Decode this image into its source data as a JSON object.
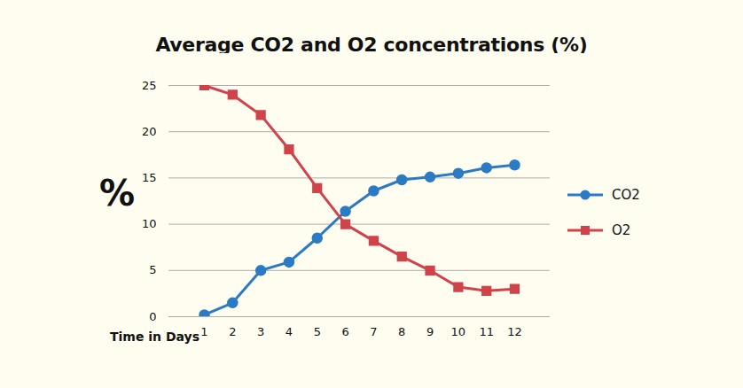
{
  "chart_data": {
    "type": "line",
    "title": "Average CO2 and O2 concentrations (%)",
    "xlabel": "Time in Days",
    "ylabel": "%",
    "x": [
      1,
      2,
      3,
      4,
      5,
      6,
      7,
      8,
      9,
      10,
      11,
      12
    ],
    "series": [
      {
        "name": "CO2",
        "color": "#2b7bc4",
        "marker": "circle",
        "line_style": "solid",
        "values": [
          0.2,
          1.5,
          5,
          5.9,
          8.5,
          11.4,
          13.6,
          14.8,
          15.1,
          15.5,
          16.1,
          16.4
        ]
      },
      {
        "name": "O2",
        "color": "#d0434a",
        "marker": "square",
        "line_style": "solid",
        "values": [
          25,
          24,
          21.8,
          18.1,
          13.9,
          10,
          8.2,
          6.5,
          5,
          3.2,
          2.8,
          3
        ]
      }
    ],
    "xlim": [
      1,
      12
    ],
    "xticks": [
      1,
      2,
      3,
      4,
      5,
      6,
      7,
      8,
      9,
      10,
      11,
      12
    ],
    "ylim": [
      0,
      25
    ],
    "yticks": [
      0,
      5,
      10,
      15,
      20,
      25
    ],
    "grid": true,
    "legend": "right"
  }
}
